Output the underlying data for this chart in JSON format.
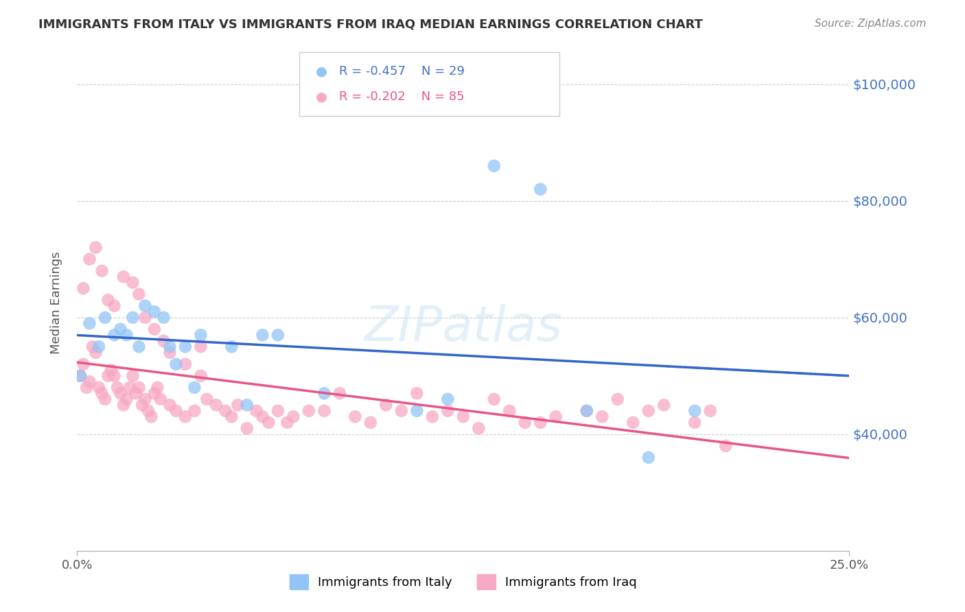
{
  "title": "IMMIGRANTS FROM ITALY VS IMMIGRANTS FROM IRAQ MEDIAN EARNINGS CORRELATION CHART",
  "source": "Source: ZipAtlas.com",
  "ylabel": "Median Earnings",
  "xlim": [
    0.0,
    0.25
  ],
  "ylim": [
    20000,
    105000
  ],
  "yticks": [
    40000,
    60000,
    80000,
    100000
  ],
  "ytick_labels": [
    "$40,000",
    "$60,000",
    "$80,000",
    "$100,000"
  ],
  "xticks": [
    0.0,
    0.25
  ],
  "xtick_labels": [
    "0.0%",
    "25.0%"
  ],
  "legend_italy": "Immigrants from Italy",
  "legend_iraq": "Immigrants from Iraq",
  "corr_italy_val": "-0.457",
  "n_italy_val": "29",
  "corr_iraq_val": "-0.202",
  "n_iraq_val": "85",
  "color_italy": "#92c5f7",
  "color_iraq": "#f7a8c4",
  "line_italy": "#3366cc",
  "line_iraq": "#e85585",
  "italy_x": [
    0.001,
    0.004,
    0.007,
    0.009,
    0.012,
    0.014,
    0.016,
    0.018,
    0.02,
    0.022,
    0.025,
    0.028,
    0.03,
    0.032,
    0.035,
    0.038,
    0.04,
    0.05,
    0.055,
    0.06,
    0.065,
    0.08,
    0.11,
    0.12,
    0.135,
    0.15,
    0.165,
    0.185,
    0.2
  ],
  "italy_y": [
    50000,
    59000,
    55000,
    60000,
    57000,
    58000,
    57000,
    60000,
    55000,
    62000,
    61000,
    60000,
    55000,
    52000,
    55000,
    48000,
    57000,
    55000,
    45000,
    57000,
    57000,
    47000,
    44000,
    46000,
    86000,
    82000,
    44000,
    36000,
    44000
  ],
  "iraq_x": [
    0.001,
    0.002,
    0.003,
    0.004,
    0.005,
    0.006,
    0.007,
    0.008,
    0.009,
    0.01,
    0.011,
    0.012,
    0.013,
    0.014,
    0.015,
    0.016,
    0.017,
    0.018,
    0.019,
    0.02,
    0.021,
    0.022,
    0.023,
    0.024,
    0.025,
    0.026,
    0.027,
    0.03,
    0.032,
    0.035,
    0.038,
    0.04,
    0.042,
    0.045,
    0.048,
    0.05,
    0.052,
    0.055,
    0.058,
    0.06,
    0.062,
    0.065,
    0.068,
    0.07,
    0.075,
    0.08,
    0.085,
    0.09,
    0.095,
    0.1,
    0.105,
    0.11,
    0.115,
    0.12,
    0.125,
    0.13,
    0.135,
    0.14,
    0.145,
    0.15,
    0.155,
    0.165,
    0.17,
    0.175,
    0.18,
    0.185,
    0.19,
    0.2,
    0.205,
    0.21,
    0.002,
    0.004,
    0.006,
    0.008,
    0.01,
    0.012,
    0.015,
    0.018,
    0.02,
    0.022,
    0.025,
    0.028,
    0.03,
    0.035,
    0.04
  ],
  "iraq_y": [
    50000,
    52000,
    48000,
    49000,
    55000,
    54000,
    48000,
    47000,
    46000,
    50000,
    51000,
    50000,
    48000,
    47000,
    45000,
    46000,
    48000,
    50000,
    47000,
    48000,
    45000,
    46000,
    44000,
    43000,
    47000,
    48000,
    46000,
    45000,
    44000,
    43000,
    44000,
    55000,
    46000,
    45000,
    44000,
    43000,
    45000,
    41000,
    44000,
    43000,
    42000,
    44000,
    42000,
    43000,
    44000,
    44000,
    47000,
    43000,
    42000,
    45000,
    44000,
    47000,
    43000,
    44000,
    43000,
    41000,
    46000,
    44000,
    42000,
    42000,
    43000,
    44000,
    43000,
    46000,
    42000,
    44000,
    45000,
    42000,
    44000,
    38000,
    65000,
    70000,
    72000,
    68000,
    63000,
    62000,
    67000,
    66000,
    64000,
    60000,
    58000,
    56000,
    54000,
    52000,
    50000
  ]
}
